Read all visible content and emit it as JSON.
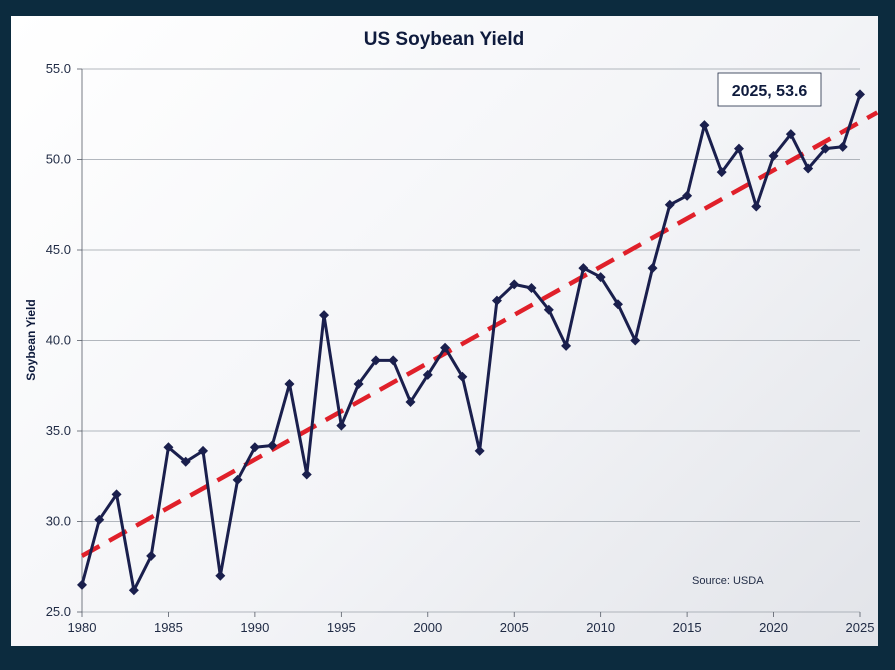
{
  "chart_data": {
    "type": "line",
    "title": "US Soybean Yield",
    "xlabel": "",
    "ylabel": "Soybean Yield",
    "xlim": [
      1980,
      2025
    ],
    "ylim": [
      25.0,
      55.0
    ],
    "x_ticks": [
      "1980",
      "1985",
      "1990",
      "1995",
      "2000",
      "2005",
      "2010",
      "2015",
      "2020",
      "2025"
    ],
    "y_ticks": [
      "25.0",
      "30.0",
      "35.0",
      "40.0",
      "45.0",
      "50.0",
      "55.0"
    ],
    "grid": "horizontal",
    "series": [
      {
        "color": "#1a1f4d",
        "marker": "diamond",
        "x": [
          1980,
          1981,
          1982,
          1983,
          1984,
          1985,
          1986,
          1987,
          1988,
          1989,
          1990,
          1991,
          1992,
          1993,
          1994,
          1995,
          1996,
          1997,
          1998,
          1999,
          2000,
          2001,
          2002,
          2003,
          2004,
          2005,
          2006,
          2007,
          2008,
          2009,
          2010,
          2011,
          2012,
          2013,
          2014,
          2015,
          2016,
          2017,
          2018,
          2019,
          2020,
          2021,
          2022,
          2023,
          2024,
          2025
        ],
        "y": [
          26.5,
          30.1,
          31.5,
          26.2,
          28.1,
          34.1,
          33.3,
          33.9,
          27.0,
          32.3,
          34.1,
          34.2,
          37.6,
          32.6,
          41.4,
          35.3,
          37.6,
          38.9,
          38.9,
          36.6,
          38.1,
          39.6,
          38.0,
          33.9,
          42.2,
          43.1,
          42.9,
          41.7,
          39.7,
          44.0,
          43.5,
          42.0,
          40.0,
          44.0,
          47.5,
          48.0,
          51.9,
          49.3,
          50.6,
          47.4,
          50.2,
          51.4,
          49.5,
          50.6,
          50.7,
          53.6
        ]
      },
      {
        "type": "trend",
        "color": "#e0202a",
        "style": "dashed",
        "x": [
          1980,
          2026
        ],
        "y": [
          28.1,
          52.6
        ]
      }
    ],
    "annotations": [
      {
        "text": "2025, 53.6",
        "x": 2025,
        "y": 53.6
      },
      {
        "text": "Source: USDA"
      }
    ]
  }
}
